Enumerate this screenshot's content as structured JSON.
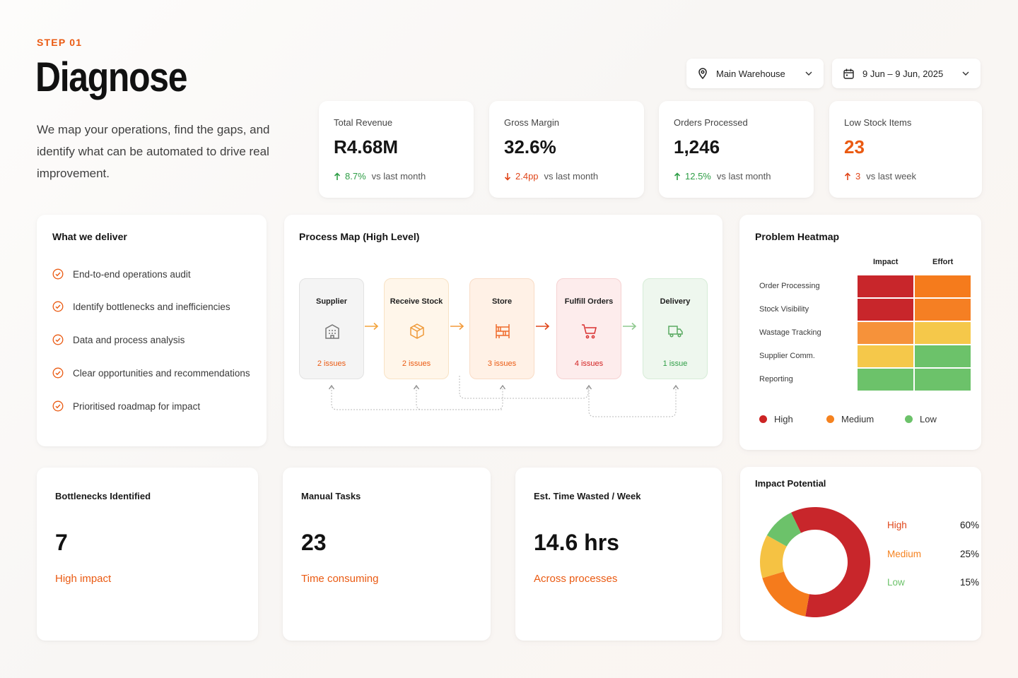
{
  "header": {
    "step": "STEP 01",
    "title": "Diagnose",
    "intro": "We map your operations, find the gaps, and identify what can be automated to drive real improvement."
  },
  "filters": {
    "location": "Main Warehouse",
    "date_range": "9 Jun – 9 Jun, 2025"
  },
  "kpis": [
    {
      "label": "Total Revenue",
      "value": "R4.68M",
      "direction": "up",
      "change": "8.7%",
      "compare": "vs last month",
      "value_color": "#151515",
      "change_color": "#2e9e46"
    },
    {
      "label": "Gross Margin",
      "value": "32.6%",
      "direction": "down",
      "change": "2.4pp",
      "compare": "vs last month",
      "value_color": "#151515",
      "change_color": "#e0461a"
    },
    {
      "label": "Orders Processed",
      "value": "1,246",
      "direction": "up",
      "change": "12.5%",
      "compare": "vs last month",
      "value_color": "#151515",
      "change_color": "#2e9e46"
    },
    {
      "label": "Low Stock Items",
      "value": "23",
      "direction": "up",
      "change": "3",
      "compare": "vs last week",
      "value_color": "#ea5a12",
      "change_color": "#e0461a"
    }
  ],
  "deliver": {
    "title": "What we deliver",
    "items": [
      "End-to-end operations audit",
      "Identify bottlenecks and inefficiencies",
      "Data and process analysis",
      "Clear opportunities and recommendations",
      "Prioritised roadmap for impact"
    ]
  },
  "process_map": {
    "title": "Process Map (High Level)",
    "steps": [
      {
        "name": "Supplier",
        "issues": "2 issues",
        "icon": "building-icon",
        "bg": "#f4f4f4",
        "border": "#e2e2e2",
        "accent": "#ea5a12",
        "icon_color": "#777777"
      },
      {
        "name": "Receive Stock",
        "issues": "2 issues",
        "icon": "box-icon",
        "bg": "#fff6ea",
        "border": "#f8e2c4",
        "accent": "#ea5a12",
        "icon_color": "#ef9a3a"
      },
      {
        "name": "Store",
        "issues": "3 issues",
        "icon": "shelves-icon",
        "bg": "#fff1e6",
        "border": "#f9dcc6",
        "accent": "#ea5a12",
        "icon_color": "#ef6a2a"
      },
      {
        "name": "Fulfill Orders",
        "issues": "4 issues",
        "icon": "cart-icon",
        "bg": "#fdecec",
        "border": "#f6d2d2",
        "accent": "#d32222",
        "icon_color": "#d93030"
      },
      {
        "name": "Delivery",
        "issues": "1 issue",
        "icon": "truck-icon",
        "bg": "#eef7ee",
        "border": "#d6ecd7",
        "accent": "#2e9e46",
        "icon_color": "#5aaa62"
      }
    ]
  },
  "heatmap": {
    "title": "Problem Heatmap",
    "columns": [
      "Impact",
      "Effort"
    ],
    "rows": [
      {
        "label": "Order Processing",
        "levels": [
          "#c8262b",
          "#f57b1c"
        ]
      },
      {
        "label": "Stock Visibility",
        "levels": [
          "#c8262b",
          "#f57f23"
        ]
      },
      {
        "label": "Wastage Tracking",
        "levels": [
          "#f6923a",
          "#f5c84a"
        ]
      },
      {
        "label": "Supplier Comm.",
        "levels": [
          "#f5c84a",
          "#6cc26a"
        ]
      },
      {
        "label": "Reporting",
        "levels": [
          "#6cc26a",
          "#6cc26a"
        ]
      }
    ],
    "legend": [
      {
        "label": "High",
        "color": "#cc2424"
      },
      {
        "label": "Medium",
        "color": "#f5821f"
      },
      {
        "label": "Low",
        "color": "#6cc26a"
      }
    ]
  },
  "stats": [
    {
      "label": "Bottlenecks Identified",
      "value": "7",
      "sub": "High impact"
    },
    {
      "label": "Manual Tasks",
      "value": "23",
      "sub": "Time consuming"
    },
    {
      "label": "Est. Time Wasted / Week",
      "value": "14.6 hrs",
      "sub": "Across processes"
    }
  ],
  "impact": {
    "title": "Impact Potential"
  },
  "chart_data": {
    "type": "pie",
    "title": "Impact Potential",
    "categories": [
      "High",
      "Medium",
      "Low"
    ],
    "values": [
      60,
      25,
      15
    ],
    "value_labels": [
      "60%",
      "25%",
      "15%"
    ],
    "colors": [
      "#c8262b",
      "#f57b1c",
      "#6cc26a"
    ],
    "extra_colors": [
      "#f5c243"
    ],
    "label_colors": [
      "#e0461a",
      "#f5821f",
      "#6cc26a"
    ],
    "legend_position": "right"
  }
}
